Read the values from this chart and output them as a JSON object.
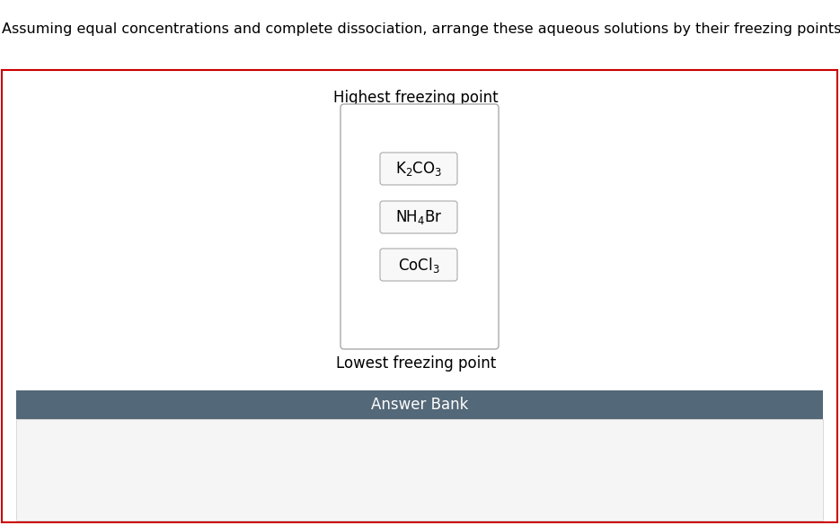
{
  "title_text": "Assuming equal concentrations and complete dissociation, arrange these aqueous solutions by their freezing points.",
  "title_fontsize": 11.5,
  "title_color": "#000000",
  "highest_label": "Highest freezing point",
  "lowest_label": "Lowest freezing point",
  "answer_bank_label": "Answer Bank",
  "compounds": [
    {
      "label": "K$_2$CO$_3$"
    },
    {
      "label": "NH$_4$Br"
    },
    {
      "label": "CoCl$_3$"
    }
  ],
  "answer_bank_header_color": "#536878",
  "answer_bank_bg_color": "#f0f0f0",
  "red_border_color": "#cc0000",
  "compound_box_facecolor": "#f8f8f8",
  "compound_box_edgecolor": "#aaaaaa",
  "outer_box_edgecolor": "#aaaaaa",
  "compound_fontsize": 12,
  "label_fontsize": 12
}
